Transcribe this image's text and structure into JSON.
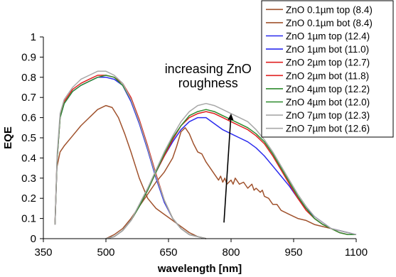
{
  "chart_data": {
    "type": "line",
    "title": "",
    "xlabel": "wavelength [nm]",
    "ylabel": "EQE",
    "xlim": [
      350,
      1100
    ],
    "ylim": [
      0,
      1
    ],
    "x_ticks": [
      "350",
      "500",
      "650",
      "800",
      "950",
      "1100"
    ],
    "y_ticks": [
      "0",
      "0.1",
      "0.2",
      "0.3",
      "0.4",
      "0.5",
      "0.6",
      "0.7",
      "0.8",
      "0.9",
      "1"
    ],
    "grid": false,
    "legend_position": "top-right",
    "annotation": {
      "lines": [
        "increasing ZnO",
        "roughness"
      ],
      "arrow": {
        "from": [
          783,
          0.08
        ],
        "to": [
          800,
          0.62
        ]
      }
    },
    "series": [
      {
        "name": "ZnO 0.1µm top (8.4)",
        "color": "#a0522d",
        "points": [
          [
            378,
            0.08
          ],
          [
            382,
            0.35
          ],
          [
            390,
            0.43
          ],
          [
            400,
            0.46
          ],
          [
            420,
            0.51
          ],
          [
            440,
            0.56
          ],
          [
            460,
            0.6
          ],
          [
            480,
            0.64
          ],
          [
            500,
            0.66
          ],
          [
            515,
            0.65
          ],
          [
            530,
            0.6
          ],
          [
            545,
            0.52
          ],
          [
            560,
            0.43
          ],
          [
            580,
            0.3
          ],
          [
            600,
            0.2
          ],
          [
            620,
            0.15
          ],
          [
            640,
            0.12
          ],
          [
            660,
            0.09
          ],
          [
            680,
            0.06
          ],
          [
            700,
            0.03
          ],
          [
            720,
            0.01
          ],
          [
            740,
            0
          ]
        ]
      },
      {
        "name": "ZnO 0.1µm bot (8.4)",
        "color": "#a0522d",
        "points": [
          [
            500,
            0
          ],
          [
            520,
            0.02
          ],
          [
            540,
            0.05
          ],
          [
            560,
            0.1
          ],
          [
            580,
            0.16
          ],
          [
            600,
            0.22
          ],
          [
            620,
            0.28
          ],
          [
            640,
            0.33
          ],
          [
            660,
            0.4
          ],
          [
            670,
            0.46
          ],
          [
            680,
            0.53
          ],
          [
            690,
            0.55
          ],
          [
            700,
            0.52
          ],
          [
            710,
            0.47
          ],
          [
            720,
            0.43
          ],
          [
            730,
            0.42
          ],
          [
            740,
            0.38
          ],
          [
            750,
            0.35
          ],
          [
            760,
            0.32
          ],
          [
            770,
            0.29
          ],
          [
            775,
            0.31
          ],
          [
            780,
            0.28
          ],
          [
            785,
            0.3
          ],
          [
            790,
            0.27
          ],
          [
            800,
            0.29
          ],
          [
            805,
            0.27
          ],
          [
            810,
            0.3
          ],
          [
            820,
            0.27
          ],
          [
            830,
            0.28
          ],
          [
            840,
            0.25
          ],
          [
            850,
            0.27
          ],
          [
            855,
            0.24
          ],
          [
            860,
            0.25
          ],
          [
            870,
            0.23
          ],
          [
            875,
            0.24
          ],
          [
            880,
            0.21
          ],
          [
            890,
            0.2
          ],
          [
            900,
            0.17
          ],
          [
            910,
            0.17
          ],
          [
            920,
            0.14
          ],
          [
            940,
            0.12
          ],
          [
            960,
            0.1
          ],
          [
            980,
            0.09
          ],
          [
            1000,
            0.07
          ],
          [
            1020,
            0.06
          ],
          [
            1040,
            0.05
          ],
          [
            1060,
            0.04
          ],
          [
            1080,
            0.03
          ],
          [
            1100,
            0.02
          ]
        ]
      },
      {
        "name": "ZnO 1µm top (12.4)",
        "color": "#2a2aee",
        "points": [
          [
            378,
            0.07
          ],
          [
            383,
            0.4
          ],
          [
            390,
            0.6
          ],
          [
            400,
            0.67
          ],
          [
            420,
            0.73
          ],
          [
            440,
            0.76
          ],
          [
            460,
            0.78
          ],
          [
            480,
            0.8
          ],
          [
            500,
            0.8
          ],
          [
            520,
            0.79
          ],
          [
            540,
            0.76
          ],
          [
            560,
            0.68
          ],
          [
            580,
            0.57
          ],
          [
            600,
            0.44
          ],
          [
            620,
            0.3
          ],
          [
            640,
            0.18
          ],
          [
            660,
            0.1
          ],
          [
            680,
            0.05
          ],
          [
            700,
            0.02
          ],
          [
            720,
            0.01
          ],
          [
            740,
            0
          ]
        ]
      },
      {
        "name": "ZnO 1µm bot (11.0)",
        "color": "#2a2aee",
        "points": [
          [
            500,
            0
          ],
          [
            520,
            0.01
          ],
          [
            540,
            0.04
          ],
          [
            560,
            0.09
          ],
          [
            580,
            0.16
          ],
          [
            600,
            0.24
          ],
          [
            620,
            0.33
          ],
          [
            640,
            0.41
          ],
          [
            660,
            0.48
          ],
          [
            680,
            0.54
          ],
          [
            700,
            0.58
          ],
          [
            720,
            0.6
          ],
          [
            740,
            0.6
          ],
          [
            760,
            0.57
          ],
          [
            780,
            0.54
          ],
          [
            800,
            0.52
          ],
          [
            820,
            0.5
          ],
          [
            840,
            0.48
          ],
          [
            860,
            0.45
          ],
          [
            880,
            0.41
          ],
          [
            900,
            0.36
          ],
          [
            920,
            0.31
          ],
          [
            940,
            0.26
          ],
          [
            960,
            0.2
          ],
          [
            980,
            0.15
          ],
          [
            1000,
            0.11
          ],
          [
            1020,
            0.08
          ],
          [
            1040,
            0.05
          ],
          [
            1060,
            0.04
          ],
          [
            1080,
            0.03
          ],
          [
            1100,
            0.02
          ]
        ]
      },
      {
        "name": "ZnO 2µm top (12.7)",
        "color": "#e02020",
        "points": [
          [
            378,
            0.07
          ],
          [
            383,
            0.4
          ],
          [
            390,
            0.6
          ],
          [
            400,
            0.68
          ],
          [
            420,
            0.74
          ],
          [
            440,
            0.77
          ],
          [
            460,
            0.79
          ],
          [
            480,
            0.81
          ],
          [
            500,
            0.81
          ],
          [
            520,
            0.8
          ],
          [
            540,
            0.77
          ],
          [
            560,
            0.7
          ],
          [
            580,
            0.59
          ],
          [
            600,
            0.46
          ],
          [
            620,
            0.32
          ],
          [
            640,
            0.19
          ],
          [
            660,
            0.1
          ],
          [
            680,
            0.05
          ],
          [
            700,
            0.02
          ],
          [
            720,
            0.01
          ],
          [
            740,
            0
          ]
        ]
      },
      {
        "name": "ZnO 2µm bot (11.8)",
        "color": "#e02020",
        "points": [
          [
            500,
            0
          ],
          [
            520,
            0.01
          ],
          [
            540,
            0.04
          ],
          [
            560,
            0.09
          ],
          [
            580,
            0.16
          ],
          [
            600,
            0.24
          ],
          [
            620,
            0.33
          ],
          [
            640,
            0.41
          ],
          [
            660,
            0.49
          ],
          [
            680,
            0.56
          ],
          [
            700,
            0.6
          ],
          [
            720,
            0.62
          ],
          [
            740,
            0.63
          ],
          [
            760,
            0.62
          ],
          [
            780,
            0.6
          ],
          [
            800,
            0.58
          ],
          [
            820,
            0.56
          ],
          [
            840,
            0.54
          ],
          [
            860,
            0.51
          ],
          [
            880,
            0.47
          ],
          [
            900,
            0.41
          ],
          [
            920,
            0.34
          ],
          [
            940,
            0.27
          ],
          [
            960,
            0.2
          ],
          [
            980,
            0.14
          ],
          [
            1000,
            0.1
          ],
          [
            1020,
            0.07
          ],
          [
            1040,
            0.05
          ],
          [
            1060,
            0.03
          ],
          [
            1080,
            0.02
          ],
          [
            1100,
            0.02
          ]
        ]
      },
      {
        "name": "ZnO 4µm top (12.2)",
        "color": "#2e8b2e",
        "points": [
          [
            378,
            0.07
          ],
          [
            383,
            0.4
          ],
          [
            390,
            0.6
          ],
          [
            400,
            0.67
          ],
          [
            420,
            0.73
          ],
          [
            440,
            0.76
          ],
          [
            460,
            0.78
          ],
          [
            480,
            0.8
          ],
          [
            500,
            0.81
          ],
          [
            520,
            0.8
          ],
          [
            540,
            0.76
          ],
          [
            560,
            0.69
          ],
          [
            580,
            0.58
          ],
          [
            600,
            0.45
          ],
          [
            620,
            0.31
          ],
          [
            640,
            0.19
          ],
          [
            660,
            0.1
          ],
          [
            680,
            0.05
          ],
          [
            700,
            0.02
          ],
          [
            720,
            0.01
          ],
          [
            740,
            0
          ]
        ]
      },
      {
        "name": "ZnO 4µm bot (12.0)",
        "color": "#2e8b2e",
        "points": [
          [
            500,
            0
          ],
          [
            520,
            0.01
          ],
          [
            540,
            0.04
          ],
          [
            560,
            0.09
          ],
          [
            580,
            0.16
          ],
          [
            600,
            0.24
          ],
          [
            620,
            0.33
          ],
          [
            640,
            0.42
          ],
          [
            660,
            0.5
          ],
          [
            680,
            0.56
          ],
          [
            700,
            0.61
          ],
          [
            720,
            0.63
          ],
          [
            740,
            0.64
          ],
          [
            760,
            0.63
          ],
          [
            780,
            0.61
          ],
          [
            800,
            0.59
          ],
          [
            820,
            0.57
          ],
          [
            840,
            0.55
          ],
          [
            860,
            0.52
          ],
          [
            880,
            0.48
          ],
          [
            900,
            0.42
          ],
          [
            920,
            0.35
          ],
          [
            940,
            0.28
          ],
          [
            960,
            0.21
          ],
          [
            980,
            0.15
          ],
          [
            1000,
            0.1
          ],
          [
            1020,
            0.07
          ],
          [
            1040,
            0.05
          ],
          [
            1060,
            0.03
          ],
          [
            1080,
            0.02
          ],
          [
            1100,
            0.02
          ]
        ]
      },
      {
        "name": "ZnO 7µm top (12.3)",
        "color": "#a8a8a8",
        "points": [
          [
            378,
            0.07
          ],
          [
            383,
            0.42
          ],
          [
            390,
            0.62
          ],
          [
            400,
            0.69
          ],
          [
            420,
            0.75
          ],
          [
            440,
            0.79
          ],
          [
            460,
            0.81
          ],
          [
            480,
            0.83
          ],
          [
            500,
            0.83
          ],
          [
            520,
            0.81
          ],
          [
            540,
            0.77
          ],
          [
            560,
            0.69
          ],
          [
            580,
            0.58
          ],
          [
            600,
            0.45
          ],
          [
            620,
            0.31
          ],
          [
            640,
            0.19
          ],
          [
            660,
            0.1
          ],
          [
            680,
            0.05
          ],
          [
            700,
            0.02
          ],
          [
            720,
            0.01
          ],
          [
            740,
            0
          ]
        ]
      },
      {
        "name": "ZnO 7µm bot (12.6)",
        "color": "#a8a8a8",
        "points": [
          [
            500,
            0
          ],
          [
            520,
            0.01
          ],
          [
            540,
            0.04
          ],
          [
            560,
            0.09
          ],
          [
            580,
            0.17
          ],
          [
            600,
            0.25
          ],
          [
            620,
            0.34
          ],
          [
            640,
            0.43
          ],
          [
            660,
            0.51
          ],
          [
            680,
            0.58
          ],
          [
            700,
            0.63
          ],
          [
            720,
            0.66
          ],
          [
            740,
            0.67
          ],
          [
            760,
            0.66
          ],
          [
            780,
            0.64
          ],
          [
            800,
            0.62
          ],
          [
            820,
            0.6
          ],
          [
            840,
            0.58
          ],
          [
            860,
            0.54
          ],
          [
            880,
            0.49
          ],
          [
            900,
            0.43
          ],
          [
            920,
            0.36
          ],
          [
            940,
            0.29
          ],
          [
            960,
            0.22
          ],
          [
            980,
            0.16
          ],
          [
            1000,
            0.11
          ],
          [
            1020,
            0.08
          ],
          [
            1040,
            0.05
          ],
          [
            1060,
            0.04
          ],
          [
            1080,
            0.03
          ],
          [
            1100,
            0.02
          ]
        ]
      }
    ]
  }
}
